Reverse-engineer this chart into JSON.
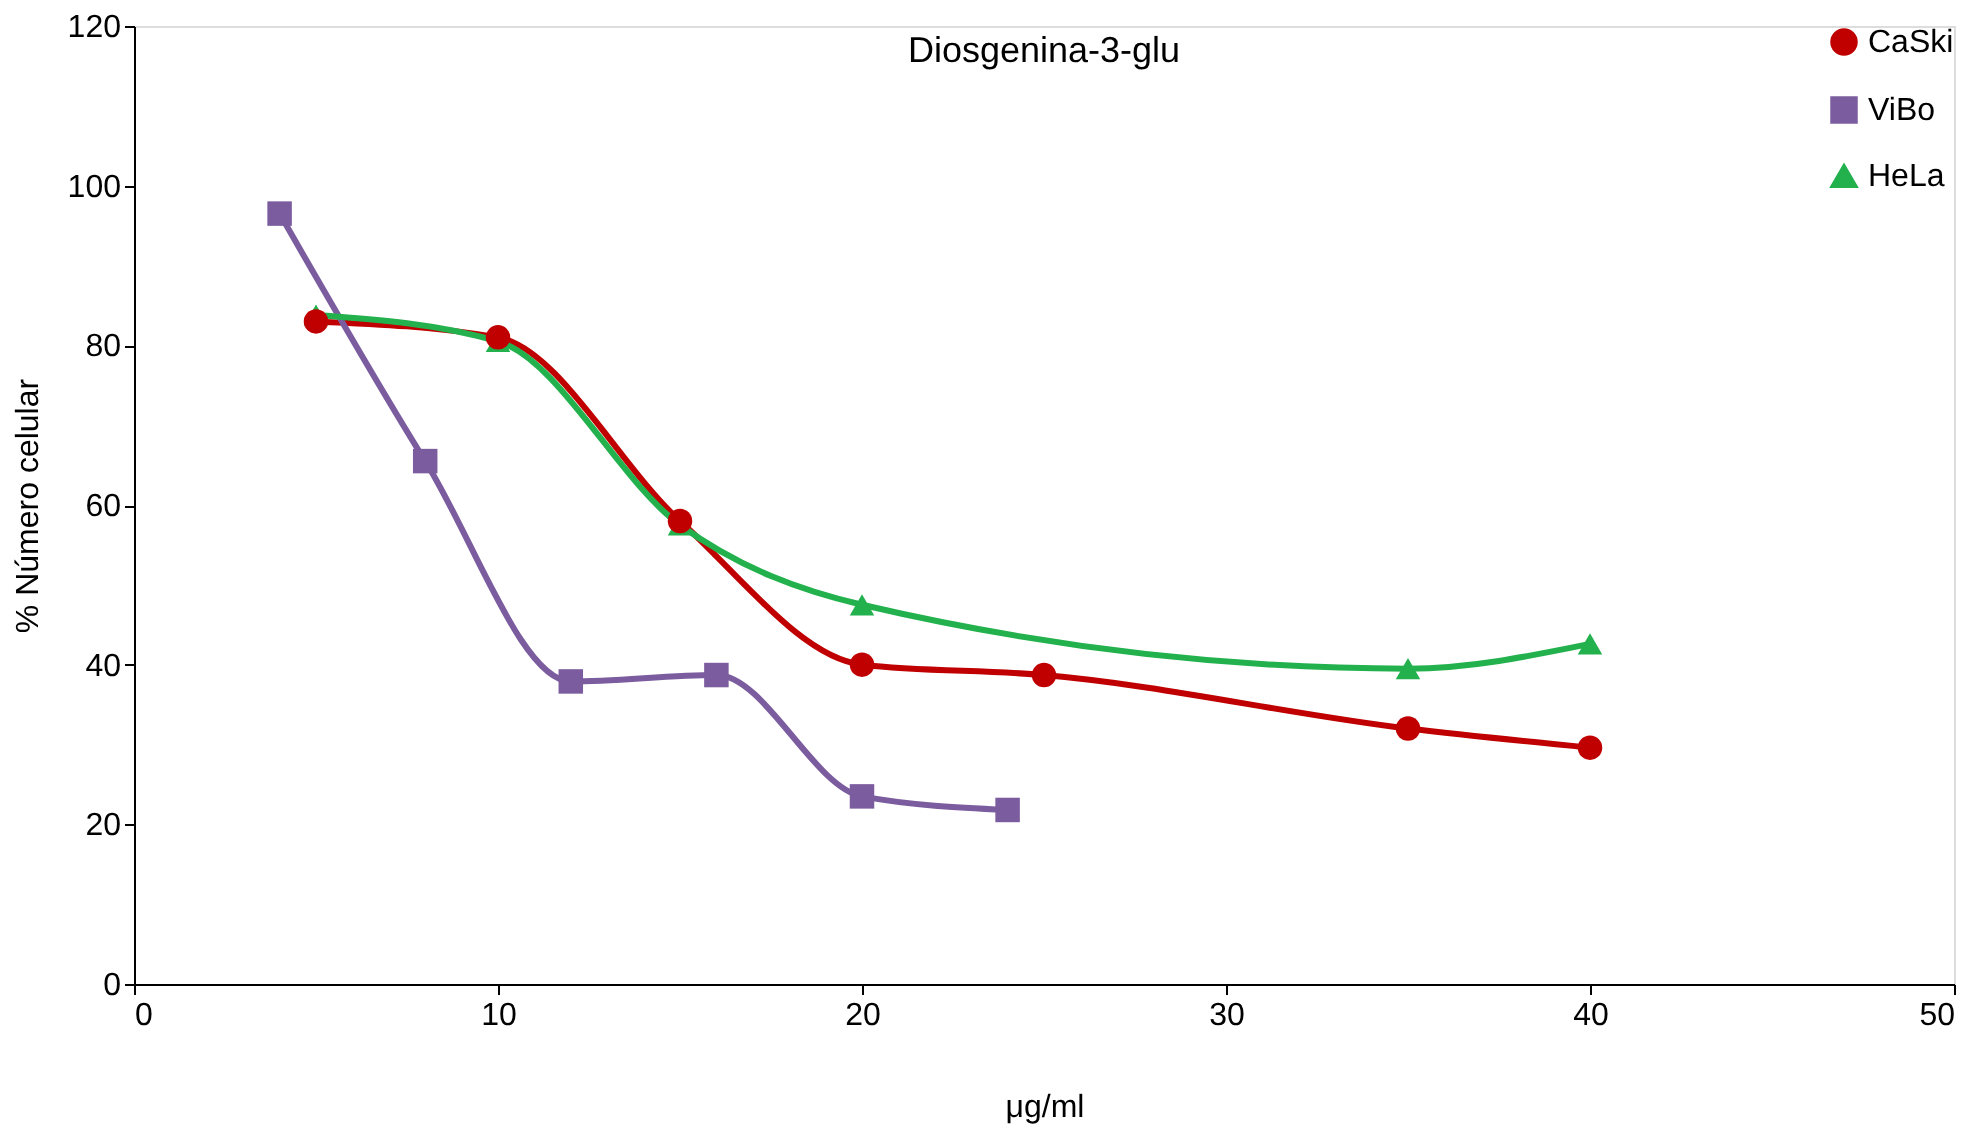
{
  "chart_data": {
    "type": "line",
    "title": "Diosgenina-3-glu",
    "xlabel": "μg/ml",
    "ylabel": "% Número celular",
    "xlim": [
      0,
      50
    ],
    "xticks": [
      0,
      10,
      20,
      30,
      40,
      50
    ],
    "ylim": [
      0,
      120
    ],
    "yticks": [
      0,
      20,
      40,
      60,
      80,
      100,
      120
    ],
    "grid": false,
    "legend": "top right",
    "line_style": "solid",
    "series": [
      {
        "name": "CaSki",
        "color": "#c00000",
        "marker": "circle",
        "x": [
          5,
          10,
          15,
          20,
          25,
          35,
          40
        ],
        "values": [
          83,
          81,
          58,
          40,
          38.7,
          32,
          29.6
        ]
      },
      {
        "name": "ViBo",
        "color": "#7b5c9e",
        "marker": "square",
        "x": [
          4,
          8,
          12,
          16,
          20,
          24
        ],
        "values": [
          96.5,
          65.5,
          37.9,
          38.7,
          23.5,
          21.8
        ]
      },
      {
        "name": "HeLa",
        "color": "#22b14c",
        "marker": "triangle",
        "x": [
          5,
          10,
          15,
          20,
          35,
          40
        ],
        "values": [
          83.8,
          80.5,
          57.5,
          47.5,
          39.5,
          42.6
        ]
      }
    ]
  }
}
